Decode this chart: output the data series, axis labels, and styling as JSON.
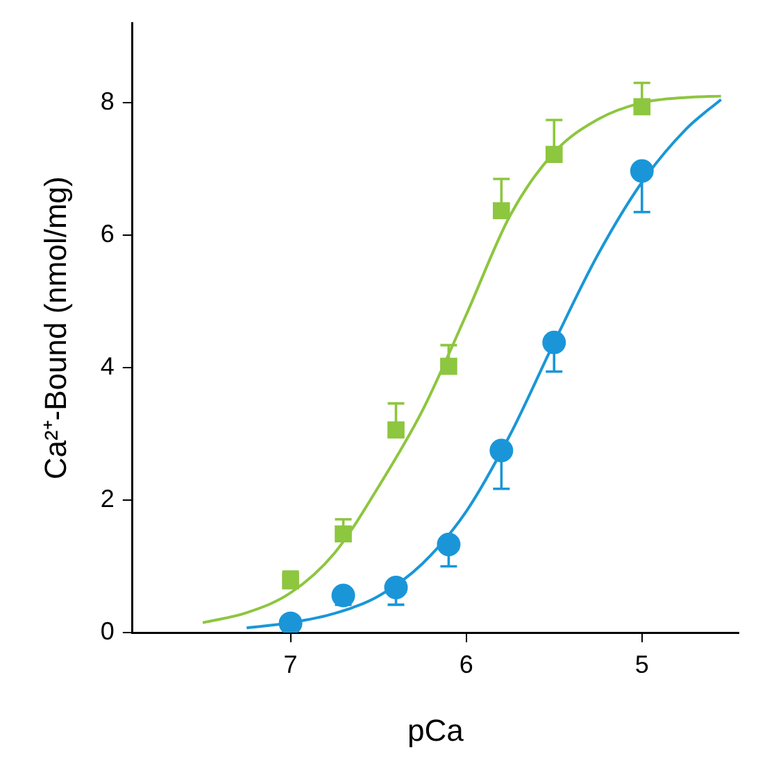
{
  "chart_data": {
    "type": "scatter",
    "xlabel": "pCa",
    "ylabel": "Ca²⁺-Bound (nmol/mg)",
    "xlim": [
      7.9,
      4.45
    ],
    "xticks": [
      7,
      6,
      5
    ],
    "ylim": [
      0,
      9.2
    ],
    "yticks": [
      0,
      2,
      4,
      6,
      8
    ],
    "grid": false,
    "legend": false,
    "series": [
      {
        "type": "line",
        "marker": "none",
        "color": "#8dc63f",
        "x": [
          7.5,
          7.25,
          7.0,
          6.75,
          6.5,
          6.25,
          6.0,
          5.75,
          5.5,
          5.25,
          5.0,
          4.75,
          4.55
        ],
        "values": [
          0.15,
          0.3,
          0.6,
          1.2,
          2.2,
          3.35,
          4.8,
          6.3,
          7.25,
          7.75,
          8.0,
          8.08,
          8.1
        ]
      },
      {
        "type": "line",
        "marker": "none",
        "color": "#1a96d8",
        "x": [
          7.25,
          7.0,
          6.75,
          6.5,
          6.25,
          6.0,
          5.75,
          5.5,
          5.25,
          5.0,
          4.75,
          4.55
        ],
        "values": [
          0.07,
          0.15,
          0.29,
          0.55,
          1.04,
          1.83,
          2.99,
          4.38,
          5.71,
          6.8,
          7.6,
          8.05
        ]
      },
      {
        "marker": "square",
        "color": "#8dc63f",
        "x": [
          7.0,
          6.7,
          6.4,
          6.1,
          5.8,
          5.5,
          5.0
        ],
        "values": [
          0.78,
          1.49,
          3.06,
          4.02,
          6.37,
          7.22,
          7.94
        ],
        "errors": [
          [
            0.78,
            0.92
          ],
          [
            1.49,
            1.71
          ],
          [
            3.06,
            3.46
          ],
          [
            4.02,
            4.34
          ],
          [
            6.37,
            6.85
          ],
          [
            7.22,
            7.74
          ],
          [
            7.94,
            8.3
          ]
        ]
      },
      {
        "marker": "circle",
        "color": "#1a96d8",
        "x": [
          7.0,
          6.7,
          6.4,
          6.1,
          5.8,
          5.5,
          5.0
        ],
        "values": [
          0.14,
          0.56,
          0.68,
          1.33,
          2.75,
          4.38,
          6.97
        ],
        "errors": [
          null,
          [
            0.42,
            0.56
          ],
          [
            0.42,
            0.68
          ],
          [
            1.0,
            1.33
          ],
          [
            2.17,
            2.75
          ],
          [
            3.94,
            4.38
          ],
          [
            6.35,
            6.97
          ]
        ]
      }
    ]
  }
}
